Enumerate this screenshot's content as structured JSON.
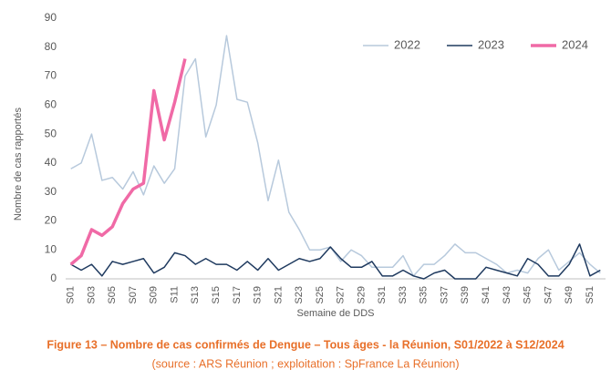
{
  "chart_data": {
    "type": "line",
    "y_label": "Nombre de cas rapportés",
    "x_label": "Semaine de DDS",
    "caption": "Figure 13 – Nombre de cas confirmés de Dengue – Tous âges - la Réunion, S01/2022 à S12/2024",
    "source": "(source : ARS Réunion ; exploitation : SpFrance La Réunion)",
    "categories": [
      "S01",
      null,
      "S03",
      null,
      "S05",
      null,
      "S07",
      null,
      "S09",
      null,
      "S11",
      null,
      "S13",
      null,
      "S15",
      null,
      "S17",
      null,
      "S19",
      null,
      "S21",
      null,
      "S23",
      null,
      "S25",
      null,
      "S27",
      null,
      "S29",
      null,
      "S31",
      null,
      "S33",
      null,
      "S35",
      null,
      "S37",
      null,
      "S39",
      null,
      "S41",
      null,
      "S43",
      null,
      "S45",
      null,
      "S47",
      null,
      "S49",
      null,
      "S51",
      null
    ],
    "series": [
      {
        "name": "2022",
        "color": "#b7c9dc",
        "width": 1.5,
        "values": [
          38,
          40,
          50,
          34,
          35,
          31,
          37,
          29,
          39,
          33,
          38,
          70,
          76,
          49,
          60,
          84,
          62,
          61,
          47,
          27,
          41,
          23,
          17,
          10,
          10,
          11,
          6,
          10,
          8,
          4,
          4,
          4,
          8,
          1,
          5,
          5,
          8,
          12,
          9,
          9,
          7,
          5,
          2,
          3,
          2,
          7,
          10,
          3,
          6,
          9,
          5,
          2
        ]
      },
      {
        "name": "2023",
        "color": "#1f3a5f",
        "width": 1.5,
        "values": [
          5,
          3,
          5,
          1,
          6,
          5,
          6,
          7,
          2,
          4,
          9,
          8,
          5,
          7,
          5,
          5,
          3,
          6,
          3,
          7,
          3,
          5,
          7,
          6,
          7,
          11,
          7,
          4,
          4,
          6,
          1,
          1,
          3,
          1,
          0,
          2,
          3,
          0,
          0,
          0,
          4,
          3,
          2,
          1,
          7,
          5,
          1,
          1,
          5,
          12,
          1,
          3
        ]
      },
      {
        "name": "2024",
        "color": "#f06aa6",
        "width": 3.5,
        "values": [
          5,
          8,
          17,
          15,
          18,
          26,
          31,
          33,
          65,
          48,
          61,
          76,
          null,
          null,
          null,
          null,
          null,
          null,
          null,
          null,
          null,
          null,
          null,
          null,
          null,
          null,
          null,
          null,
          null,
          null,
          null,
          null,
          null,
          null,
          null,
          null,
          null,
          null,
          null,
          null,
          null,
          null,
          null,
          null,
          null,
          null,
          null,
          null,
          null,
          null,
          null,
          null
        ]
      }
    ],
    "ylim": [
      0,
      90
    ],
    "yticks": [
      0,
      10,
      20,
      30,
      40,
      50,
      60,
      70,
      80,
      90
    ],
    "grid": false,
    "legend": "top-right"
  }
}
